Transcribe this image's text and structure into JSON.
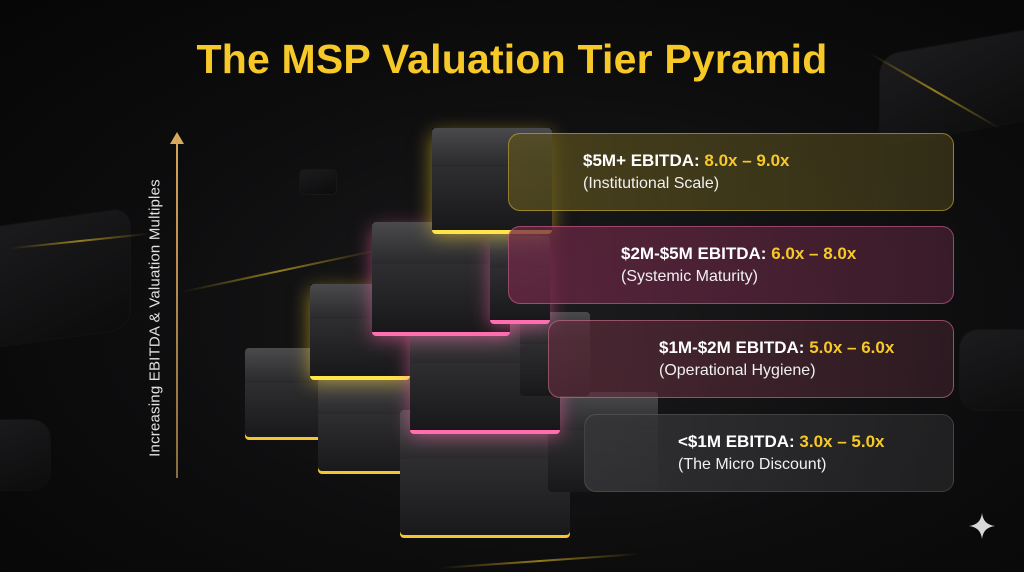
{
  "title": "The MSP Valuation Tier Pyramid",
  "axis": {
    "label": "Increasing EBITDA & Valuation Multiples",
    "arrow_icon": "up-arrow-icon",
    "color": "#d9a95c"
  },
  "colors": {
    "title": "#f7c928",
    "multiple": "#f7c928",
    "tier_glow_yellow": "#ffe44a",
    "tier_glow_pink": "#ff6fb0",
    "background": "#0b0b0c"
  },
  "tiers": [
    {
      "range": "$5M+ EBITDA:",
      "multiple": "8.0x – 9.0x",
      "label": "(Institutional Scale)"
    },
    {
      "range": "$2M-$5M EBITDA:",
      "multiple": "6.0x – 8.0x",
      "label": "(Systemic Maturity)"
    },
    {
      "range": "$1M-$2M EBITDA:",
      "multiple": "5.0x – 6.0x",
      "label": "(Operational Hygiene)"
    },
    {
      "range": "<$1M EBITDA:",
      "multiple": "3.0x – 5.0x",
      "label": "(The Micro Discount)"
    }
  ],
  "corner_icon": "sparkle-icon"
}
